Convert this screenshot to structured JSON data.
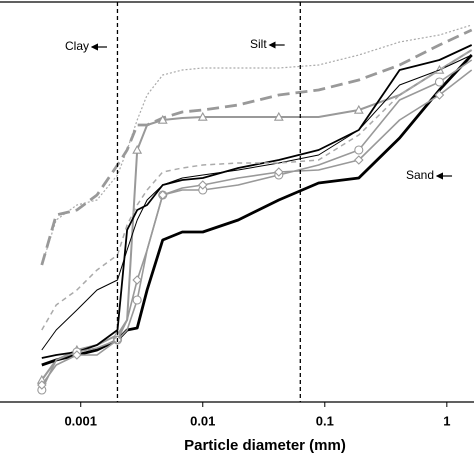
{
  "chart_data": {
    "type": "line",
    "xscale": "log",
    "xlabel": "Particle diameter (mm)",
    "xlim": [
      0.000218,
      1.67
    ],
    "ylim": [
      0,
      100
    ],
    "xticks": [
      0.001,
      0.01,
      0.1,
      1
    ],
    "boundaries": [
      0.002,
      0.063
    ],
    "annotations": [
      "Clay",
      "Silt",
      "Sand"
    ],
    "x": [
      0.00048,
      0.00063,
      0.00093,
      0.00136,
      0.002,
      0.0024,
      0.0029,
      0.0035,
      0.0047,
      0.0068,
      0.01,
      0.0195,
      0.042,
      0.089,
      0.19,
      0.41,
      0.87,
      1.6
    ],
    "series": [
      {
        "color": "#aaaaaa",
        "width": 1.2,
        "dash": "2,2",
        "marker": "none",
        "values": [
          34.25,
          45.5,
          49.25,
          50.5,
          56.75,
          63,
          70.5,
          76.75,
          81.75,
          83,
          83.5,
          83.5,
          83.5,
          84.25,
          86.75,
          90,
          91.75,
          94.25
        ]
      },
      {
        "color": "#999999",
        "width": 2.8,
        "dash": "12,6",
        "marker": "none",
        "values": [
          34.25,
          46.75,
          48,
          51.75,
          59.25,
          63,
          69.25,
          69.25,
          71,
          72.5,
          73,
          74.25,
          76.75,
          78,
          80.5,
          84.25,
          89.25,
          93
        ]
      },
      {
        "color": "#999999",
        "width": 2,
        "dash": "none",
        "marker": "triangle",
        "values": [
          5.5,
          10.5,
          13,
          14.25,
          16.75,
          20.5,
          63,
          69.25,
          70.5,
          71,
          71.25,
          71.25,
          71.25,
          71.25,
          73,
          76.75,
          83,
          88
        ]
      },
      {
        "color": "#000000",
        "width": 2.8,
        "dash": "none",
        "marker": "none",
        "values": [
          9.25,
          10.5,
          11.75,
          13,
          15.5,
          18,
          18.5,
          28,
          40.5,
          42.5,
          42.5,
          45.5,
          50.5,
          54.75,
          56,
          66,
          78,
          86.75
        ]
      },
      {
        "color": "#000000",
        "width": 1,
        "dash": "none",
        "marker": "none",
        "values": [
          13,
          18,
          23,
          28,
          30.5,
          38,
          45.5,
          50.5,
          54.25,
          56,
          56.75,
          58,
          59.75,
          61.75,
          68,
          79.25,
          83,
          86.75
        ]
      },
      {
        "color": "#000000",
        "width": 1.8,
        "dash": "none",
        "marker": "none",
        "values": [
          11,
          11.75,
          12.5,
          14.25,
          18,
          43,
          48,
          49.25,
          54.25,
          55.5,
          56,
          58.5,
          60.5,
          63,
          68,
          83,
          85.5,
          89.25
        ]
      },
      {
        "color": "#999999",
        "width": 1.6,
        "dash": "none",
        "marker": "circle",
        "values": [
          3,
          10.5,
          12.5,
          13.5,
          15.5,
          18,
          25.5,
          38,
          51.75,
          53,
          53,
          54.25,
          56.75,
          59.25,
          63,
          75.5,
          80,
          85.5
        ]
      },
      {
        "color": "#999999",
        "width": 1.6,
        "dash": "none",
        "marker": "diamond",
        "values": [
          4.25,
          9.25,
          11.75,
          11.75,
          15.5,
          20.5,
          30.5,
          38,
          51.75,
          53.5,
          54.25,
          56,
          57.5,
          58,
          60.5,
          70.5,
          76.75,
          83
        ]
      },
      {
        "color": "#aaaaaa",
        "width": 1.5,
        "dash": "5,4",
        "marker": "none",
        "values": [
          18,
          24.25,
          28,
          33,
          36.75,
          44.25,
          49.25,
          53,
          57.5,
          58.5,
          59.25,
          59.75,
          59.75,
          60.5,
          66.75,
          76.75,
          83,
          88
        ]
      }
    ]
  }
}
